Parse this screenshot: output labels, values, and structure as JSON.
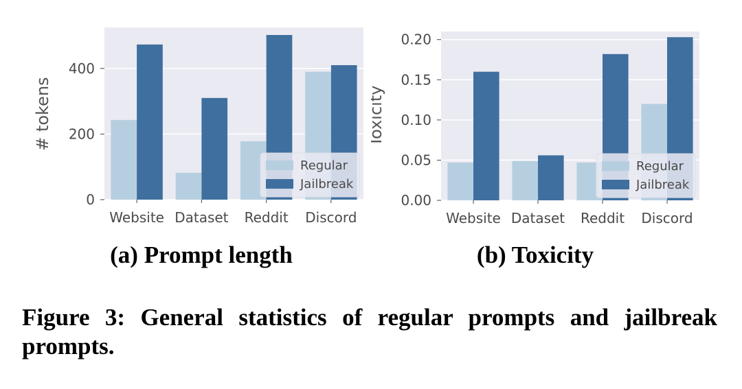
{
  "chart_data": [
    {
      "type": "bar",
      "title": "(a) Prompt length",
      "xlabel": "",
      "ylabel": "# tokens",
      "categories": [
        "Website",
        "Dataset",
        "Reddit",
        "Discord"
      ],
      "series": [
        {
          "name": "Regular",
          "values": [
            243,
            82,
            178,
            390
          ]
        },
        {
          "name": "Jailbreak",
          "values": [
            473,
            310,
            502,
            410
          ]
        }
      ],
      "ylim": [
        0,
        525
      ],
      "yticks": [
        0,
        200,
        400
      ],
      "ytick_labels": [
        "0",
        "200",
        "400"
      ],
      "grid": true,
      "legend_position": "lower-right",
      "colors": {
        "Regular": "#b6cfe0",
        "Jailbreak": "#3f6f9f",
        "background": "#eaeaf2",
        "grid": "#ffffff"
      }
    },
    {
      "type": "bar",
      "title": "(b) Toxicity",
      "xlabel": "",
      "ylabel": "Toxicity",
      "categories": [
        "Website",
        "Dataset",
        "Reddit",
        "Discord"
      ],
      "series": [
        {
          "name": "Regular",
          "values": [
            0.047,
            0.049,
            0.047,
            0.12
          ]
        },
        {
          "name": "Jailbreak",
          "values": [
            0.16,
            0.056,
            0.182,
            0.203
          ]
        }
      ],
      "ylim": [
        0,
        0.21
      ],
      "yticks": [
        0.0,
        0.05,
        0.1,
        0.15,
        0.2
      ],
      "ytick_labels": [
        "0.00",
        "0.05",
        "0.10",
        "0.15",
        "0.20"
      ],
      "grid": true,
      "legend_position": "lower-right",
      "colors": {
        "Regular": "#b6cfe0",
        "Jailbreak": "#3f6f9f",
        "background": "#eaeaf2",
        "grid": "#ffffff"
      }
    }
  ],
  "figure_caption": "Figure 3: General statistics of regular prompts and jailbreak prompts."
}
